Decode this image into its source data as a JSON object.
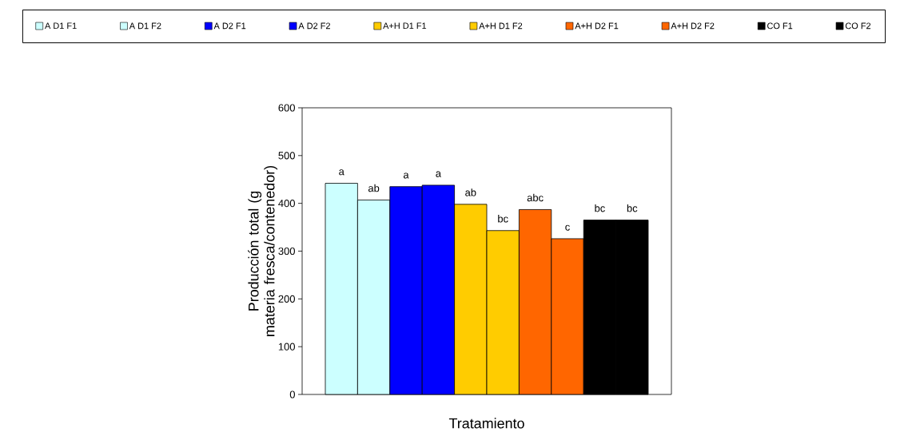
{
  "chart_data": {
    "type": "bar",
    "xlabel": "Tratamiento",
    "ylabel": "Producción total (g materia fresca/contenedor)",
    "categories": [
      null
    ],
    "series": [
      {
        "name": "A D1 F1",
        "color": "#ccffff",
        "values": [
          442
        ]
      },
      {
        "name": "A D1 F2",
        "color": "#ccffff",
        "values": [
          407
        ]
      },
      {
        "name": "A D2 F1",
        "color": "#0000ff",
        "values": [
          435
        ]
      },
      {
        "name": "A D2 F2",
        "color": "#0000ff",
        "values": [
          438
        ]
      },
      {
        "name": "A+H D1 F1",
        "color": "#ffcc00",
        "values": [
          398
        ]
      },
      {
        "name": "A+H D1 F2",
        "color": "#ffcc00",
        "values": [
          343
        ]
      },
      {
        "name": "A+H D2 F1",
        "color": "#ff6600",
        "values": [
          387
        ]
      },
      {
        "name": "A+H D2 F2",
        "color": "#ff6600",
        "values": [
          326
        ]
      },
      {
        "name": "CO F1",
        "color": "#000000",
        "values": [
          365
        ]
      },
      {
        "name": "CO F2",
        "color": "#000000",
        "values": [
          365
        ]
      }
    ],
    "annotations": [
      {
        "text": "a",
        "y": 442
      },
      {
        "text": "ab",
        "y": 407
      },
      {
        "text": "a",
        "y": 435
      },
      {
        "text": "a",
        "y": 438
      },
      {
        "text": "ab",
        "y": 398
      },
      {
        "text": "bc",
        "y": 343
      },
      {
        "text": "abc",
        "y": 387
      },
      {
        "text": "c",
        "y": 326
      },
      {
        "text": "bc",
        "y": 365
      },
      {
        "text": "bc",
        "y": 365
      }
    ],
    "ylim": [
      0,
      600
    ],
    "yticks": [
      0,
      100,
      200,
      300,
      400,
      500,
      600
    ],
    "legend": "top",
    "grid": false
  }
}
